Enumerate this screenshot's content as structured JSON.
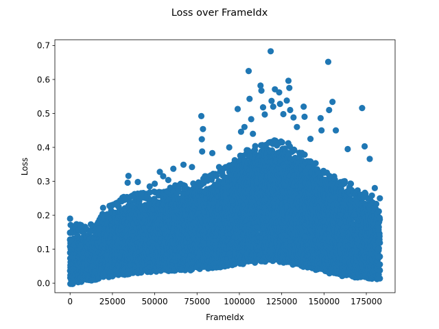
{
  "chart_data": {
    "type": "scatter",
    "title": "Loss over FrameIdx",
    "xlabel": "FrameIdx",
    "ylabel": "Loss",
    "xlim": [
      -9000,
      192000
    ],
    "ylim": [
      -0.028,
      0.717
    ],
    "xticks": [
      0,
      25000,
      50000,
      75000,
      100000,
      125000,
      150000,
      175000
    ],
    "xtick_labels": [
      "0",
      "25000",
      "50000",
      "75000",
      "100000",
      "125000",
      "150000",
      "175000"
    ],
    "yticks": [
      0.0,
      0.1,
      0.2,
      0.3,
      0.4,
      0.5,
      0.6,
      0.7
    ],
    "ytick_labels": [
      "0.0",
      "0.1",
      "0.2",
      "0.3",
      "0.4",
      "0.5",
      "0.6",
      "0.7"
    ],
    "grid": false,
    "marker_color": "#1f77b4",
    "dense_band": {
      "x_range": [
        0,
        183000
      ],
      "upper_profile": [
        [
          0,
          0.13
        ],
        [
          15000,
          0.13
        ],
        [
          20000,
          0.17
        ],
        [
          30000,
          0.21
        ],
        [
          50000,
          0.23
        ],
        [
          75000,
          0.26
        ],
        [
          90000,
          0.29
        ],
        [
          100000,
          0.33
        ],
        [
          110000,
          0.37
        ],
        [
          125000,
          0.38
        ],
        [
          140000,
          0.33
        ],
        [
          150000,
          0.29
        ],
        [
          165000,
          0.25
        ],
        [
          175000,
          0.23
        ],
        [
          183000,
          0.19
        ]
      ],
      "lower_profile": [
        [
          0,
          0.0
        ],
        [
          20000,
          0.02
        ],
        [
          40000,
          0.035
        ],
        [
          60000,
          0.04
        ],
        [
          80000,
          0.045
        ],
        [
          100000,
          0.06
        ],
        [
          120000,
          0.07
        ],
        [
          140000,
          0.05
        ],
        [
          160000,
          0.025
        ],
        [
          183000,
          0.015
        ]
      ]
    },
    "outliers": [
      [
        0,
        0.19
      ],
      [
        0,
        0.148
      ],
      [
        0,
        0.127
      ],
      [
        17000,
        0.16
      ],
      [
        19500,
        0.222
      ],
      [
        24000,
        0.224
      ],
      [
        28000,
        0.232
      ],
      [
        32000,
        0.245
      ],
      [
        34500,
        0.316
      ],
      [
        34000,
        0.296
      ],
      [
        40000,
        0.298
      ],
      [
        42000,
        0.265
      ],
      [
        47000,
        0.285
      ],
      [
        50000,
        0.293
      ],
      [
        53000,
        0.328
      ],
      [
        55000,
        0.315
      ],
      [
        58000,
        0.304
      ],
      [
        61000,
        0.337
      ],
      [
        67000,
        0.349
      ],
      [
        72000,
        0.342
      ],
      [
        77500,
        0.492
      ],
      [
        78500,
        0.454
      ],
      [
        77800,
        0.424
      ],
      [
        78000,
        0.388
      ],
      [
        84000,
        0.383
      ],
      [
        88000,
        0.342
      ],
      [
        94000,
        0.4
      ],
      [
        99000,
        0.513
      ],
      [
        101000,
        0.446
      ],
      [
        103000,
        0.46
      ],
      [
        105500,
        0.625
      ],
      [
        106000,
        0.543
      ],
      [
        107000,
        0.483
      ],
      [
        108000,
        0.44
      ],
      [
        112500,
        0.582
      ],
      [
        113000,
        0.567
      ],
      [
        114000,
        0.518
      ],
      [
        115000,
        0.497
      ],
      [
        118500,
        0.683
      ],
      [
        119000,
        0.537
      ],
      [
        120000,
        0.52
      ],
      [
        121000,
        0.571
      ],
      [
        123500,
        0.562
      ],
      [
        124000,
        0.528
      ],
      [
        126000,
        0.498
      ],
      [
        128000,
        0.538
      ],
      [
        129000,
        0.596
      ],
      [
        129500,
        0.575
      ],
      [
        130000,
        0.51
      ],
      [
        132000,
        0.488
      ],
      [
        134000,
        0.46
      ],
      [
        138000,
        0.52
      ],
      [
        138500,
        0.49
      ],
      [
        142000,
        0.425
      ],
      [
        148000,
        0.486
      ],
      [
        148500,
        0.45
      ],
      [
        152500,
        0.652
      ],
      [
        153000,
        0.51
      ],
      [
        155000,
        0.534
      ],
      [
        157000,
        0.45
      ],
      [
        164000,
        0.395
      ],
      [
        172500,
        0.516
      ],
      [
        174000,
        0.403
      ],
      [
        177000,
        0.366
      ],
      [
        180000,
        0.28
      ],
      [
        183000,
        0.25
      ]
    ]
  }
}
